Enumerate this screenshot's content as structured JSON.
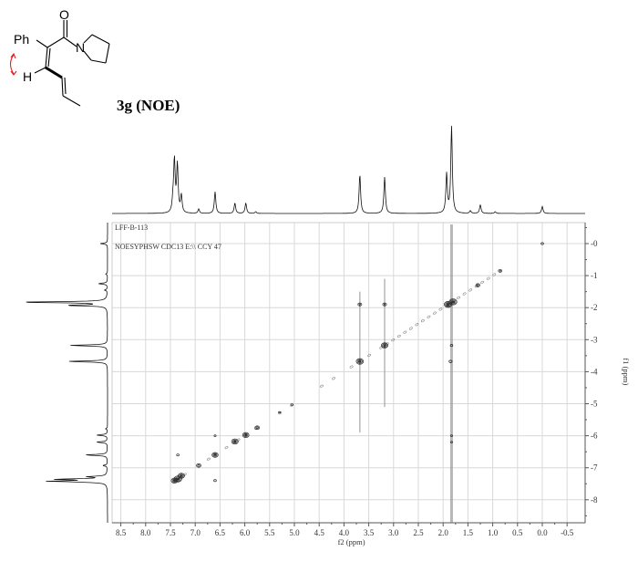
{
  "structure": {
    "labels": {
      "ph": "Ph",
      "o": "O",
      "n": "N",
      "h": "H"
    },
    "compound_label": "3g (NOE)",
    "noe_arrow_color": "#e02020"
  },
  "chart_data": {
    "type": "heatmap",
    "subtype": "2D NOESY contour plot with 1D projections",
    "info_lines": [
      "LFF-B-113",
      "NOESYPHSW CDC13 E:\\\\ CCY 47"
    ],
    "xlabel": "f2 (ppm)",
    "ylabel": "f1 (ppm)",
    "xlim": [
      8.7,
      -0.7
    ],
    "ylim": [
      -0.65,
      8.7
    ],
    "x_ticks": [
      "8.5",
      "8.0",
      "7.5",
      "7.0",
      "6.5",
      "6.0",
      "5.5",
      "5.0",
      "4.5",
      "4.0",
      "3.5",
      "3.0",
      "2.5",
      "2.0",
      "1.5",
      "1.0",
      "0.5",
      "0.0",
      "-0.5"
    ],
    "y_ticks": [
      "0",
      "1",
      "2",
      "3",
      "4",
      "5",
      "6",
      "7",
      "8"
    ],
    "grid": true,
    "projection_peaks": [
      {
        "ppm": 7.42,
        "intensity": 0.6
      },
      {
        "ppm": 7.36,
        "intensity": 0.55
      },
      {
        "ppm": 7.28,
        "intensity": 0.2
      },
      {
        "ppm": 7.45,
        "intensity": 0.12
      },
      {
        "ppm": 6.93,
        "intensity": 0.05
      },
      {
        "ppm": 6.6,
        "intensity": 0.25
      },
      {
        "ppm": 6.2,
        "intensity": 0.12
      },
      {
        "ppm": 5.98,
        "intensity": 0.12
      },
      {
        "ppm": 5.78,
        "intensity": 0.02
      },
      {
        "ppm": 3.68,
        "intensity": 0.45
      },
      {
        "ppm": 3.18,
        "intensity": 0.42
      },
      {
        "ppm": 1.93,
        "intensity": 0.45
      },
      {
        "ppm": 1.83,
        "intensity": 1.0
      },
      {
        "ppm": 1.45,
        "intensity": 0.03
      },
      {
        "ppm": 1.25,
        "intensity": 0.1
      },
      {
        "ppm": 0.95,
        "intensity": 0.02
      },
      {
        "ppm": 0.0,
        "intensity": 0.08
      }
    ],
    "cross_peaks": [
      {
        "f2": 7.35,
        "f1": 7.35,
        "size": 3
      },
      {
        "f2": 7.28,
        "f1": 7.25,
        "size": 2.5
      },
      {
        "f2": 7.42,
        "f1": 7.4,
        "size": 2.5
      },
      {
        "f2": 6.93,
        "f1": 6.93,
        "size": 1.8
      },
      {
        "f2": 6.6,
        "f1": 6.6,
        "size": 2.4
      },
      {
        "f2": 6.2,
        "f1": 6.18,
        "size": 2.6
      },
      {
        "f2": 5.98,
        "f1": 5.98,
        "size": 2.5
      },
      {
        "f2": 5.75,
        "f1": 5.75,
        "size": 1.8
      },
      {
        "f2": 5.3,
        "f1": 5.27,
        "size": 0.8
      },
      {
        "f2": 5.05,
        "f1": 5.03,
        "size": 0.9
      },
      {
        "f2": 3.68,
        "f1": 3.68,
        "size": 2.8
      },
      {
        "f2": 3.18,
        "f1": 3.18,
        "size": 2.6
      },
      {
        "f2": 1.9,
        "f1": 1.9,
        "size": 3
      },
      {
        "f2": 1.8,
        "f1": 1.82,
        "size": 3
      },
      {
        "f2": 1.3,
        "f1": 1.3,
        "size": 1.6
      },
      {
        "f2": 0.85,
        "f1": 0.85,
        "size": 1.4
      },
      {
        "f2": 0.0,
        "f1": 0.0,
        "size": 1.0
      },
      {
        "f2": 3.68,
        "f1": 1.9,
        "size": 1.5
      },
      {
        "f2": 3.18,
        "f1": 1.9,
        "size": 1.5
      },
      {
        "f2": 1.83,
        "f1": 3.18,
        "size": 1.0
      },
      {
        "f2": 1.85,
        "f1": 3.68,
        "size": 1.2
      },
      {
        "f2": 6.6,
        "f1": 7.4,
        "size": 1.0
      },
      {
        "f2": 7.35,
        "f1": 6.6,
        "size": 1.0
      },
      {
        "f2": 6.6,
        "f1": 6.0,
        "size": 0.8
      },
      {
        "f2": 1.83,
        "f1": 6.0,
        "size": 0.8
      },
      {
        "f2": 1.83,
        "f1": 6.2,
        "size": 0.8
      }
    ]
  }
}
